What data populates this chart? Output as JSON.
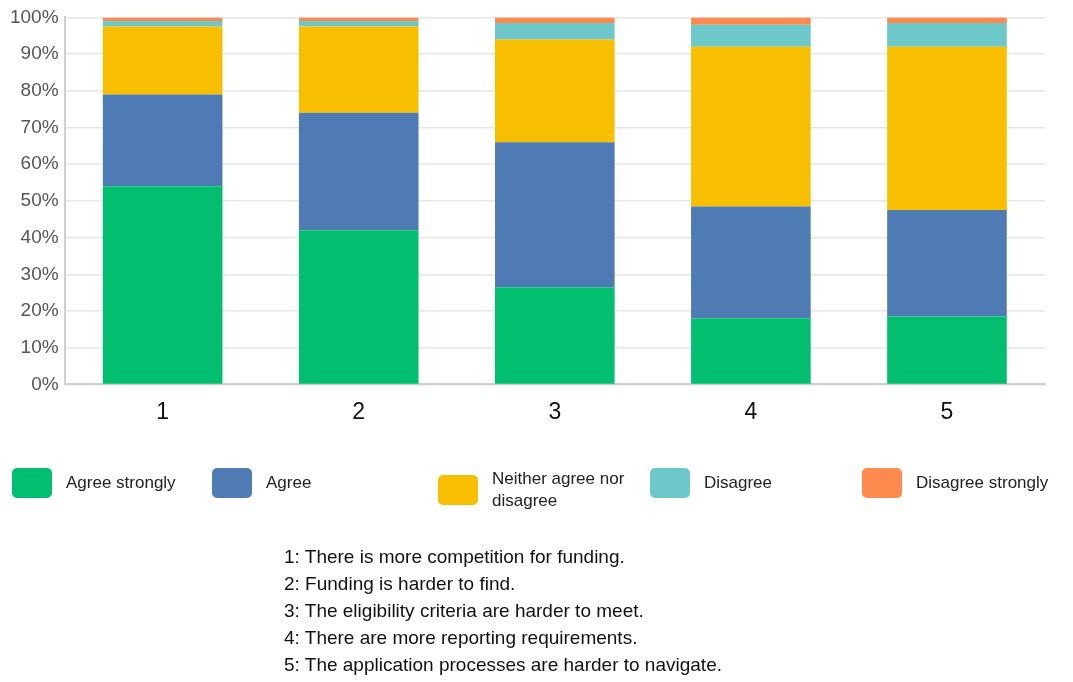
{
  "chart_data": {
    "type": "bar",
    "stacked": true,
    "categories": [
      "1",
      "2",
      "3",
      "4",
      "5"
    ],
    "series": [
      {
        "name": "Agree strongly",
        "color": "#02bf6f",
        "values": [
          54,
          42,
          26.5,
          18,
          18.5
        ]
      },
      {
        "name": "Agree",
        "color": "#4f7bb5",
        "values": [
          25,
          32,
          39.5,
          30.5,
          29
        ]
      },
      {
        "name": "Neither agree nor disagree",
        "color": "#f8be00",
        "values": [
          18.5,
          23.5,
          28,
          43.5,
          44.5
        ]
      },
      {
        "name": "Disagree",
        "color": "#6dc8ca",
        "values": [
          1.5,
          1.5,
          4.5,
          6,
          6.5
        ]
      },
      {
        "name": "Disagree strongly",
        "color": "#fe8a4f",
        "values": [
          1,
          1,
          1.5,
          2,
          1.5
        ]
      }
    ],
    "ylim": [
      0,
      100
    ],
    "yticks": [
      {
        "value": 0,
        "label": "0%"
      },
      {
        "value": 10,
        "label": "10%"
      },
      {
        "value": 20,
        "label": "20%"
      },
      {
        "value": 30,
        "label": "30%"
      },
      {
        "value": 40,
        "label": "40%"
      },
      {
        "value": 50,
        "label": "50%"
      },
      {
        "value": 60,
        "label": "60%"
      },
      {
        "value": 70,
        "label": "70%"
      },
      {
        "value": 80,
        "label": "80%"
      },
      {
        "value": 90,
        "label": "90%"
      },
      {
        "value": 100,
        "label": "100%"
      }
    ],
    "grid": "y",
    "legend": "bottom",
    "annotations": [
      "1: There is more competition for funding.",
      "2: Funding is harder to find.",
      "3: The eligibility criteria are harder to meet.",
      "4: There are more reporting requirements.",
      "5: The application processes are harder to navigate."
    ]
  }
}
